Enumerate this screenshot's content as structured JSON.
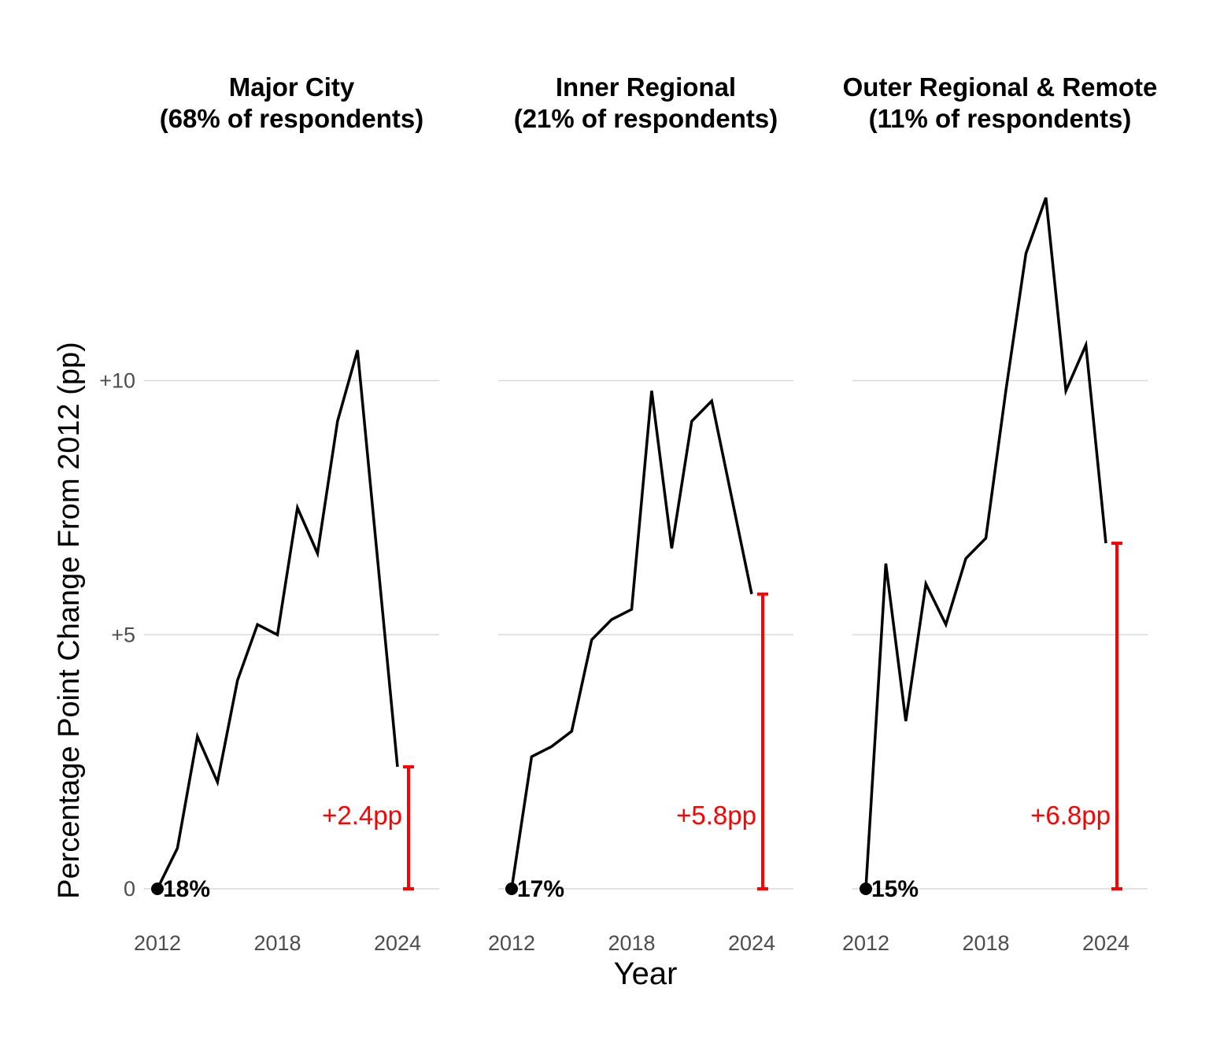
{
  "chart_data": {
    "type": "line",
    "title": "",
    "xlabel": "Year",
    "ylabel": "Percentage Point Change From 2012 (pp)",
    "x": [
      2012,
      2013,
      2014,
      2015,
      2016,
      2017,
      2018,
      2019,
      2020,
      2021,
      2022,
      2023,
      2024
    ],
    "x_ticks": [
      2012,
      2018,
      2024
    ],
    "y_ticks": [
      {
        "value": 0,
        "label": "0"
      },
      {
        "value": 5,
        "label": "+5"
      },
      {
        "value": 10,
        "label": "+10"
      }
    ],
    "ylim": [
      -0.55,
      14.0
    ],
    "grid": "horizontal-only",
    "legend_position": "none",
    "facets": [
      {
        "title": "Major City",
        "subtitle": "(68% of respondents)",
        "baseline_2012_label": "18%",
        "annotation_label": "+2.4pp",
        "final_change_pp": 2.4,
        "values": [
          0,
          0.8,
          3.0,
          2.1,
          4.1,
          5.2,
          5.0,
          7.5,
          6.6,
          9.2,
          10.6,
          6.5,
          2.4
        ]
      },
      {
        "title": "Inner Regional",
        "subtitle": "(21% of respondents)",
        "baseline_2012_label": "17%",
        "annotation_label": "+5.8pp",
        "final_change_pp": 5.8,
        "values": [
          0,
          2.6,
          2.8,
          3.1,
          4.9,
          5.3,
          5.5,
          9.8,
          6.7,
          9.2,
          9.6,
          7.7,
          5.8
        ]
      },
      {
        "title": "Outer Regional & Remote",
        "subtitle": "(11% of respondents)",
        "baseline_2012_label": "15%",
        "annotation_label": "+6.8pp",
        "final_change_pp": 6.8,
        "values": [
          0,
          6.4,
          3.3,
          6.0,
          5.2,
          6.5,
          6.9,
          9.8,
          12.5,
          13.6,
          9.8,
          10.7,
          6.8
        ]
      }
    ],
    "colors": {
      "line": "#000000",
      "start_dot": "#000000",
      "start_label_text": "#000000",
      "annotation": "#FF0000",
      "gridline": "#D9D9D9",
      "tick_text": "#4D4D4D",
      "title_text": "#000000",
      "background": "#FFFFFF"
    }
  }
}
